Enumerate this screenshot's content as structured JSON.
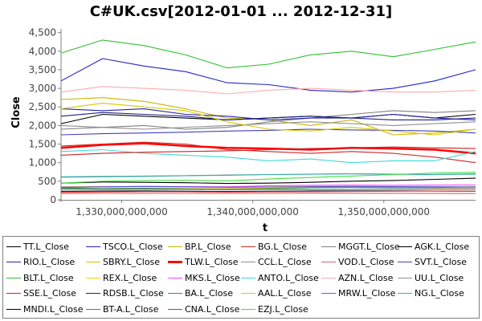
{
  "chart_data": {
    "type": "line",
    "title": "C#UK.csv[2012-01-01 ... 2012-12-31]",
    "xlabel": "t",
    "ylabel": "Close",
    "x_ticks": [
      "1,330,000,000,000",
      "1,340,000,000,000",
      "1,350,000,000,000"
    ],
    "x_tick_values": [
      1330000000000,
      1340000000000,
      1350000000000
    ],
    "xlim": [
      1325376000000,
      1357000000000
    ],
    "y_ticks": [
      "0",
      "500",
      "1,000",
      "1,500",
      "2,000",
      "2,500",
      "3,000",
      "3,500",
      "4,000",
      "4,500"
    ],
    "y_tick_values": [
      0,
      500,
      1000,
      1500,
      2000,
      2500,
      3000,
      3500,
      4000,
      4500
    ],
    "ylim": [
      0,
      4600
    ],
    "grid": false,
    "legend_position": "bottom",
    "x": [
      1325376000000,
      1328544000000,
      1331712000000,
      1334880000000,
      1338048000000,
      1341216000000,
      1344384000000,
      1347552000000,
      1350720000000,
      1353888000000,
      1357000000000
    ],
    "series": [
      {
        "name": "TT.L_Close",
        "color": "#000000",
        "values": [
          230,
          235,
          240,
          232,
          225,
          230,
          236,
          238,
          240,
          236,
          232
        ]
      },
      {
        "name": "TSCO.L_Close",
        "color": "#2323cc",
        "values": [
          3200,
          3800,
          3600,
          3450,
          3150,
          3100,
          2950,
          2900,
          3000,
          3200,
          3500
        ]
      },
      {
        "name": "BP.L_Close",
        "color": "#c8b400",
        "values": [
          2700,
          2750,
          2650,
          2450,
          2200,
          2150,
          2000,
          2150,
          1750,
          1800,
          1900
        ]
      },
      {
        "name": "BG.L_Close",
        "color": "#cc2a2a",
        "values": [
          1450,
          1500,
          1550,
          1500,
          1350,
          1300,
          1250,
          1300,
          1250,
          1150,
          1000
        ]
      },
      {
        "name": "MGGT.L_Close",
        "color": "#808080",
        "values": [
          1900,
          1950,
          2000,
          1900,
          1950,
          2100,
          2200,
          2300,
          2400,
          2350,
          2400
        ]
      },
      {
        "name": "AGK.L_Close",
        "color": "#000000",
        "values": [
          2050,
          2300,
          2250,
          2200,
          2150,
          2200,
          2250,
          2200,
          2300,
          2200,
          2300
        ]
      },
      {
        "name": "RIO.L_Close",
        "color": "#2323aa",
        "values": [
          2450,
          2400,
          2450,
          2300,
          2250,
          2150,
          2200,
          2200,
          2300,
          2200,
          2150
        ]
      },
      {
        "name": "SBRY.L_Close",
        "color": "#d8c000",
        "values": [
          290,
          300,
          310,
          305,
          300,
          310,
          330,
          340,
          330,
          320,
          325
        ]
      },
      {
        "name": "TLW.L_Close",
        "color": "#ff0000",
        "values": [
          1400,
          1480,
          1520,
          1450,
          1400,
          1380,
          1350,
          1400,
          1380,
          1350,
          1250
        ]
      },
      {
        "name": "CCL.L_Close",
        "color": "#909090",
        "values": [
          2000,
          1950,
          1900,
          1950,
          2000,
          2050,
          2100,
          2050,
          2000,
          2050,
          2100
        ]
      },
      {
        "name": "VOD.L_Close",
        "color": "#e06060",
        "values": [
          170,
          172,
          175,
          172,
          175,
          178,
          180,
          178,
          176,
          170,
          168
        ]
      },
      {
        "name": "SVT.L_Close",
        "color": "#4040c0",
        "values": [
          1750,
          1780,
          1800,
          1820,
          1850,
          1870,
          1900,
          1880,
          1870,
          1850,
          1800
        ]
      },
      {
        "name": "BLT.L_Close",
        "color": "#30c030",
        "values": [
          3950,
          4300,
          4150,
          3900,
          3550,
          3650,
          3900,
          4000,
          3850,
          4050,
          4250
        ]
      },
      {
        "name": "REX.L_Close",
        "color": "#e8d800",
        "values": [
          350,
          360,
          355,
          345,
          340,
          350,
          360,
          355,
          350,
          345,
          350
        ]
      },
      {
        "name": "MKS.L_Close",
        "color": "#ff40ff",
        "values": [
          340,
          350,
          360,
          355,
          350,
          380,
          390,
          395,
          390,
          395,
          400
        ]
      },
      {
        "name": "ANTO.L_Close",
        "color": "#40d8d8",
        "values": [
          1300,
          1350,
          1250,
          1200,
          1150,
          1050,
          1100,
          1000,
          1050,
          1050,
          1300
        ]
      },
      {
        "name": "AZN.L_Close",
        "color": "#ffaaaa",
        "values": [
          2900,
          3050,
          3000,
          2950,
          2850,
          2950,
          3000,
          2950,
          2900,
          2900,
          2950
        ]
      },
      {
        "name": "UU.L_Close",
        "color": "#909090",
        "values": [
          610,
          620,
          630,
          650,
          670,
          680,
          690,
          700,
          690,
          680,
          700
        ]
      },
      {
        "name": "SSE.L_Close",
        "color": "#d02020",
        "values": [
          1200,
          1250,
          1280,
          1300,
          1320,
          1350,
          1380,
          1400,
          1420,
          1400,
          1380
        ]
      },
      {
        "name": "RDSB.L_Close",
        "color": "#202080",
        "values": [
          2250,
          2350,
          2300,
          2250,
          2150,
          2200,
          2250,
          2200,
          2150,
          2150,
          2200
        ]
      },
      {
        "name": "BA.L_Close",
        "color": "#30a030",
        "values": [
          320,
          300,
          310,
          290,
          280,
          300,
          320,
          330,
          320,
          330,
          350
        ]
      },
      {
        "name": "AAL.L_Close",
        "color": "#d8c800",
        "values": [
          2450,
          2600,
          2500,
          2400,
          2100,
          1900,
          1850,
          1950,
          1850,
          1750,
          1900
        ]
      },
      {
        "name": "MRW.L_Close",
        "color": "#6060e0",
        "values": [
          290,
          280,
          285,
          280,
          275,
          280,
          270,
          275,
          280,
          285,
          290
        ]
      },
      {
        "name": "NG.L_Close",
        "color": "#30b0b0",
        "values": [
          620,
          630,
          640,
          650,
          660,
          680,
          690,
          700,
          690,
          680,
          690
        ]
      },
      {
        "name": "MNDI.L_Close",
        "color": "#000000",
        "values": [
          450,
          480,
          470,
          460,
          440,
          450,
          470,
          500,
          520,
          550,
          580
        ]
      },
      {
        "name": "BT-A.L_Close",
        "color": "#e04040",
        "values": [
          200,
          210,
          220,
          215,
          210,
          215,
          220,
          225,
          230,
          235,
          230
        ]
      },
      {
        "name": "CNA.L_Close",
        "color": "#5050d0",
        "values": [
          340,
          350,
          360,
          350,
          340,
          345,
          355,
          360,
          355,
          350,
          345
        ]
      },
      {
        "name": "EZJ.L_Close",
        "color": "#40e040",
        "values": [
          450,
          500,
          520,
          530,
          510,
          560,
          600,
          640,
          680,
          720,
          740
        ]
      }
    ]
  }
}
